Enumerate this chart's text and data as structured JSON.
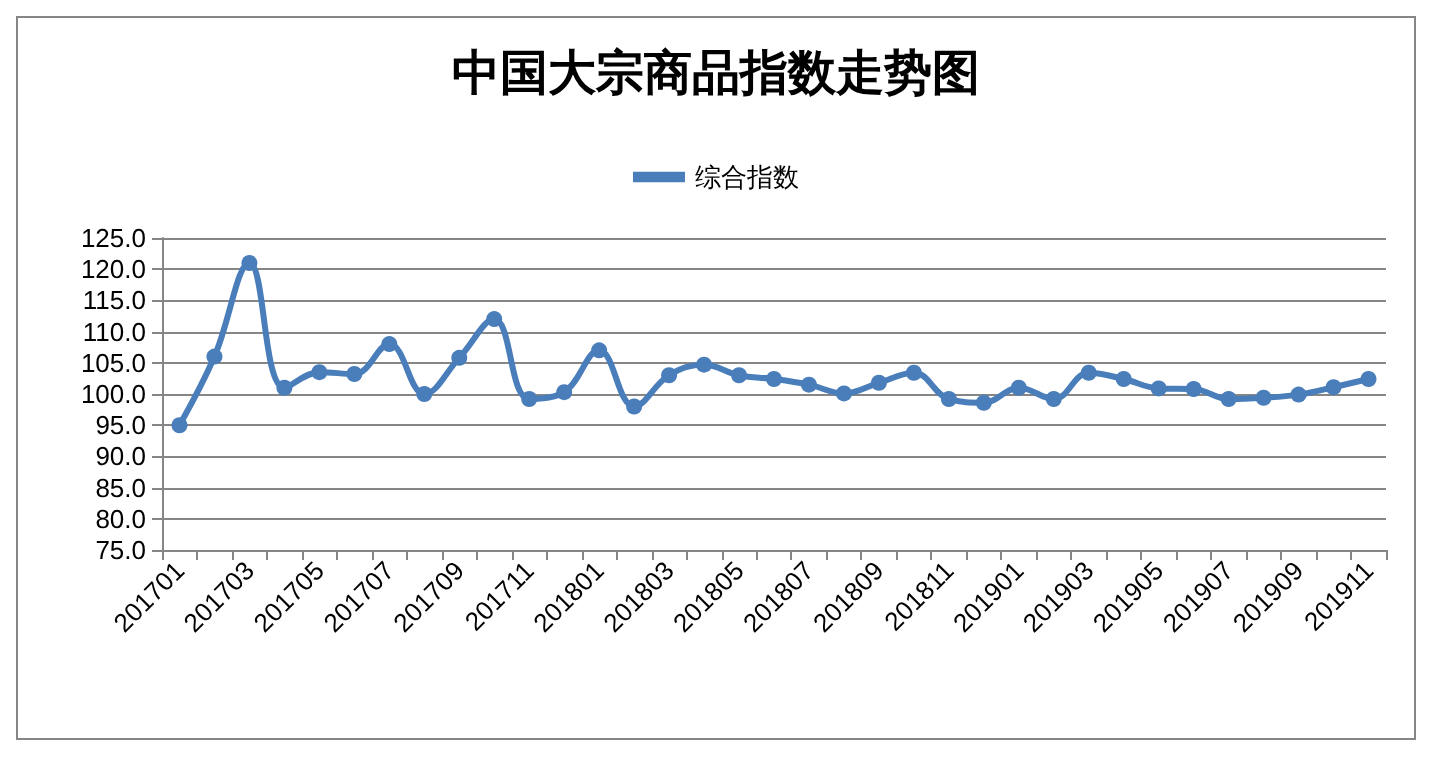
{
  "chart_data": {
    "type": "line",
    "title": "中国大宗商品指数走势图",
    "categories": [
      "201701",
      null,
      "201703",
      null,
      "201705",
      null,
      "201707",
      null,
      "201709",
      null,
      "201711",
      null,
      "201801",
      null,
      "201803",
      null,
      "201805",
      null,
      "201807",
      null,
      "201809",
      null,
      "201811",
      null,
      "201901",
      null,
      "201903",
      null,
      "201905",
      null,
      "201907",
      null,
      "201909",
      null,
      "201911"
    ],
    "series": [
      {
        "name": "综合指数",
        "color": "#4a7ebb",
        "values": [
          95.0,
          106.0,
          121.0,
          101.0,
          103.5,
          103.2,
          108.0,
          100.0,
          105.8,
          112.0,
          99.2,
          100.3,
          107.0,
          98.0,
          103.0,
          104.7,
          103.0,
          102.4,
          101.5,
          100.1,
          101.8,
          103.4,
          99.2,
          98.6,
          101.0,
          99.2,
          103.4,
          102.4,
          100.9,
          100.8,
          99.2,
          99.4,
          99.9,
          101.1,
          102.4
        ]
      }
    ],
    "ylim": [
      75,
      125
    ],
    "yticks": [
      {
        "value": 75,
        "label": "75.0"
      },
      {
        "value": 80,
        "label": "80.0"
      },
      {
        "value": 85,
        "label": "85.0"
      },
      {
        "value": 90,
        "label": "90.0"
      },
      {
        "value": 95,
        "label": "95.0"
      },
      {
        "value": 100,
        "label": "100.0"
      },
      {
        "value": 105,
        "label": "105.0"
      },
      {
        "value": 110,
        "label": "110.0"
      },
      {
        "value": 115,
        "label": "115.0"
      },
      {
        "value": 120,
        "label": "120.0"
      },
      {
        "value": 125,
        "label": "125.0"
      }
    ],
    "grid": "y",
    "legend": "top",
    "marker": "circle",
    "line_style": "solid"
  }
}
